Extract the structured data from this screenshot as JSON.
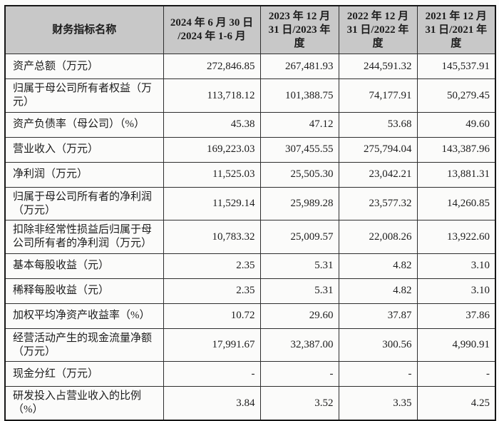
{
  "colors": {
    "header_bg": "#c8c8c8",
    "border": "#2e2e2e",
    "outer_border": "#161616",
    "text": "#1c1c1c"
  },
  "table": {
    "header": [
      "财务指标名称",
      "2024 年 6 月 30 日 /2024 年 1-6 月",
      "2023 年 12 月 31 日/2023 年度",
      "2022 年 12 月 31 日/2022 年度",
      "2021 年 12 月 31 日/2021 年度"
    ],
    "rows": [
      {
        "label": "资产总额（万元）",
        "values": [
          "272,846.85",
          "267,481.93",
          "244,591.32",
          "145,537.91"
        ]
      },
      {
        "label": "归属于母公司所有者权益（万元）",
        "values": [
          "113,718.12",
          "101,388.75",
          "74,177.91",
          "50,279.45"
        ]
      },
      {
        "label": "资产负债率（母公司）（%）",
        "values": [
          "45.38",
          "47.12",
          "53.68",
          "49.60"
        ]
      },
      {
        "label": "营业收入（万元）",
        "values": [
          "169,223.03",
          "307,455.55",
          "275,794.04",
          "143,387.96"
        ]
      },
      {
        "label": "净利润（万元）",
        "values": [
          "11,525.03",
          "25,505.30",
          "23,042.21",
          "13,881.31"
        ]
      },
      {
        "label": "归属于母公司所有者的净利润（万元）",
        "values": [
          "11,529.14",
          "25,989.28",
          "23,577.32",
          "14,260.85"
        ]
      },
      {
        "label": "扣除非经常性损益后归属于母公司所有者的净利润（万元）",
        "values": [
          "10,783.32",
          "25,009.57",
          "22,008.26",
          "13,922.60"
        ]
      },
      {
        "label": "基本每股收益（元）",
        "values": [
          "2.35",
          "5.31",
          "4.82",
          "3.10"
        ]
      },
      {
        "label": "稀释每股收益（元）",
        "values": [
          "2.35",
          "5.31",
          "4.82",
          "3.10"
        ]
      },
      {
        "label": "加权平均净资产收益率（%）",
        "values": [
          "10.72",
          "29.60",
          "37.87",
          "37.86"
        ]
      },
      {
        "label": "经营活动产生的现金流量净额（万元）",
        "values": [
          "17,991.67",
          "32,387.00",
          "300.56",
          "4,990.91"
        ]
      },
      {
        "label": "现金分红（万元）",
        "values": [
          "-",
          "-",
          "-",
          "-"
        ]
      },
      {
        "label": "研发投入占营业收入的比例（%）",
        "values": [
          "3.84",
          "3.52",
          "3.35",
          "4.25"
        ]
      }
    ]
  }
}
